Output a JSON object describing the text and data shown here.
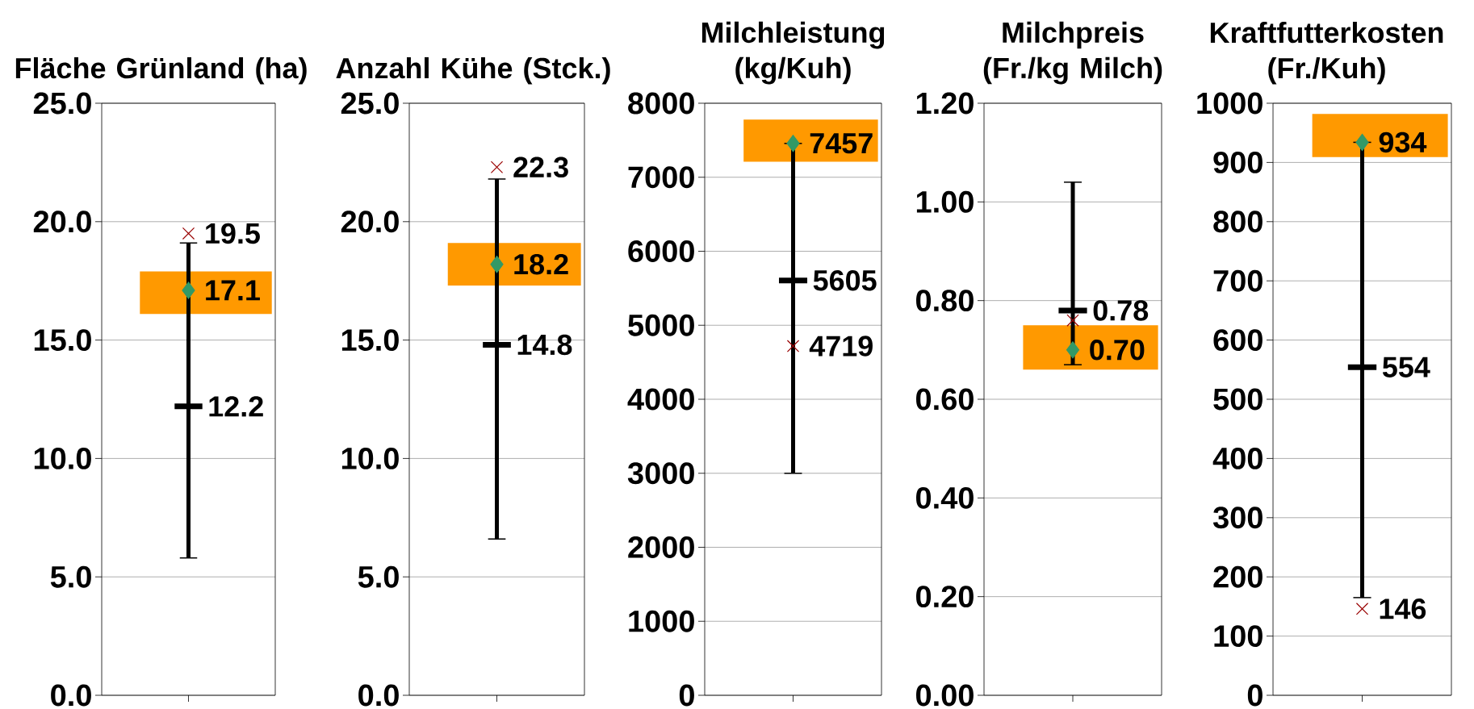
{
  "chart_data": [
    {
      "type": "box",
      "title": "Fläche Grünland (ha)",
      "categories": [
        null
      ],
      "ylim": [
        0,
        25
      ],
      "yticks": [
        {
          "value": 0,
          "label": "0.0"
        },
        {
          "value": 5,
          "label": "5.0"
        },
        {
          "value": 10,
          "label": "10.0"
        },
        {
          "value": 15,
          "label": "15.0"
        },
        {
          "value": 20,
          "label": "20.0"
        },
        {
          "value": 25,
          "label": "25.0"
        }
      ],
      "grid": "y",
      "bands": [
        {
          "axis": "y",
          "from": 16.1,
          "to": 17.9,
          "color": "#ff9900"
        }
      ],
      "series": [
        {
          "type": "box",
          "color": "#000000",
          "boxes": [
            {
              "low": 5.8,
              "q1": 12.2,
              "median": 12.2,
              "q3": 12.2,
              "high": 19.1
            }
          ],
          "value_labels": [
            "12.2"
          ]
        },
        {
          "type": "scatter",
          "marker": "cross",
          "color": "#990000",
          "values": [
            19.5
          ],
          "value_labels": [
            "19.5"
          ]
        },
        {
          "type": "scatter",
          "marker": "diamond",
          "color": "#339966",
          "values": [
            17.1
          ],
          "value_labels": [
            "17.1"
          ]
        }
      ]
    },
    {
      "type": "box",
      "title": "Anzahl Kühe (Stck.)",
      "categories": [
        null
      ],
      "ylim": [
        0,
        25
      ],
      "yticks": [
        {
          "value": 0,
          "label": "0.0"
        },
        {
          "value": 5,
          "label": "5.0"
        },
        {
          "value": 10,
          "label": "10.0"
        },
        {
          "value": 15,
          "label": "15.0"
        },
        {
          "value": 20,
          "label": "20.0"
        },
        {
          "value": 25,
          "label": "25.0"
        }
      ],
      "grid": "y",
      "bands": [
        {
          "axis": "y",
          "from": 17.3,
          "to": 19.1,
          "color": "#ff9900"
        }
      ],
      "series": [
        {
          "type": "box",
          "color": "#000000",
          "boxes": [
            {
              "low": 6.6,
              "q1": 14.8,
              "median": 14.8,
              "q3": 14.8,
              "high": 21.8
            }
          ],
          "value_labels": [
            "14.8"
          ]
        },
        {
          "type": "scatter",
          "marker": "cross",
          "color": "#990000",
          "values": [
            22.3
          ],
          "value_labels": [
            "22.3"
          ]
        },
        {
          "type": "scatter",
          "marker": "diamond",
          "color": "#339966",
          "values": [
            18.2
          ],
          "value_labels": [
            "18.2"
          ]
        }
      ]
    },
    {
      "type": "box",
      "title": "Milchleistung (kg/Kuh)",
      "categories": [
        null
      ],
      "ylim": [
        0,
        8000
      ],
      "yticks": [
        0,
        1000,
        2000,
        3000,
        4000,
        5000,
        6000,
        7000,
        8000
      ],
      "grid": "y",
      "bands": [
        {
          "axis": "y",
          "from": 7210,
          "to": 7780,
          "color": "#ff9900"
        }
      ],
      "series": [
        {
          "type": "box",
          "color": "#000000",
          "boxes": [
            {
              "low": 3000,
              "q1": 5605,
              "median": 5605,
              "q3": 5605,
              "high": 7457
            }
          ],
          "value_labels": [
            "5605"
          ]
        },
        {
          "type": "scatter",
          "marker": "cross",
          "color": "#990000",
          "values": [
            4719
          ],
          "value_labels": [
            "4719"
          ]
        },
        {
          "type": "scatter",
          "marker": "diamond",
          "color": "#339966",
          "values": [
            7457
          ],
          "value_labels": [
            "7457"
          ]
        }
      ]
    },
    {
      "type": "box",
      "title": "Milchpreis (Fr./kg Milch)",
      "categories": [
        null
      ],
      "ylim": [
        0,
        1.2
      ],
      "yticks": [
        {
          "value": 0,
          "label": "0.00"
        },
        {
          "value": 0.2,
          "label": "0.20"
        },
        {
          "value": 0.4,
          "label": "0.40"
        },
        {
          "value": 0.6,
          "label": "0.60"
        },
        {
          "value": 0.8,
          "label": "0.80"
        },
        {
          "value": 1.0,
          "label": "1.00"
        },
        {
          "value": 1.2,
          "label": "1.20"
        }
      ],
      "grid": "y",
      "bands": [
        {
          "axis": "y",
          "from": 0.66,
          "to": 0.75,
          "color": "#ff9900"
        }
      ],
      "series": [
        {
          "type": "box",
          "color": "#000000",
          "boxes": [
            {
              "low": 0.67,
              "q1": 0.78,
              "median": 0.78,
              "q3": 0.78,
              "high": 1.04
            }
          ],
          "value_labels": [
            "0.78"
          ]
        },
        {
          "type": "scatter",
          "marker": "cross",
          "color": "#990000",
          "values": [
            0.76
          ],
          "value_labels": [
            null
          ]
        },
        {
          "type": "scatter",
          "marker": "diamond",
          "color": "#339966",
          "values": [
            0.7
          ],
          "value_labels": [
            "0.70"
          ]
        }
      ]
    },
    {
      "type": "box",
      "title": "Kraftfutterkosten (Fr./Kuh)",
      "categories": [
        null
      ],
      "ylim": [
        0,
        1000
      ],
      "yticks": [
        0,
        100,
        200,
        300,
        400,
        500,
        600,
        700,
        800,
        900,
        1000
      ],
      "grid": "y",
      "bands": [
        {
          "axis": "y",
          "from": 909,
          "to": 982,
          "color": "#ff9900"
        }
      ],
      "series": [
        {
          "type": "box",
          "color": "#000000",
          "boxes": [
            {
              "low": 165,
              "q1": 554,
              "median": 554,
              "q3": 554,
              "high": 934
            }
          ],
          "value_labels": [
            "554"
          ]
        },
        {
          "type": "scatter",
          "marker": "cross",
          "color": "#990000",
          "values": [
            146
          ],
          "value_labels": [
            "146"
          ]
        },
        {
          "type": "scatter",
          "marker": "diamond",
          "color": "#339966",
          "values": [
            934
          ],
          "value_labels": [
            "934"
          ]
        }
      ]
    }
  ]
}
